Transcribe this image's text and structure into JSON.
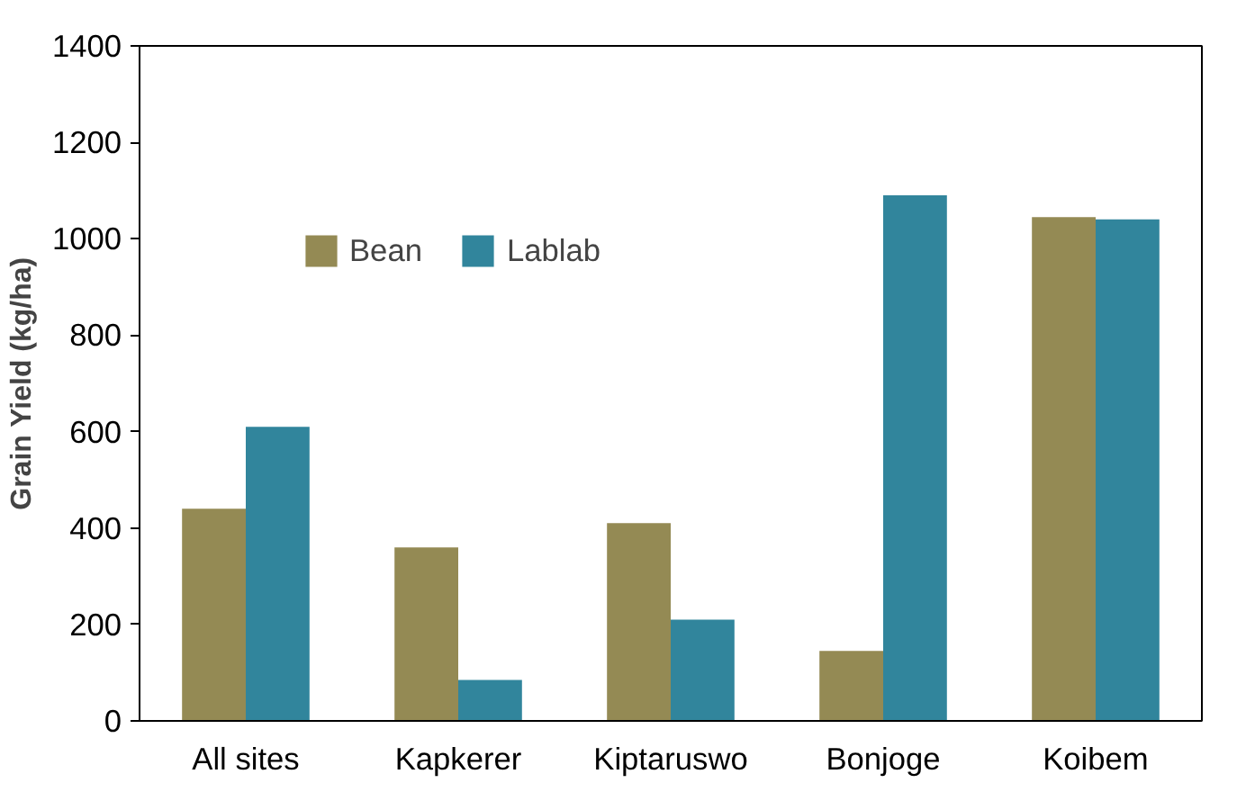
{
  "chart_data": {
    "type": "bar",
    "ylabel": "Grain Yield (kg/ha)",
    "categories": [
      "All sites",
      "Kapkerer",
      "Kiptaruswo",
      "Bonjoge",
      "Koibem"
    ],
    "series": [
      {
        "name": "Bean",
        "color": "#948a54",
        "values": [
          440,
          360,
          410,
          145,
          1045
        ]
      },
      {
        "name": "Lablab",
        "color": "#31859c",
        "values": [
          610,
          85,
          210,
          1090,
          1040
        ]
      }
    ],
    "ylim": [
      0,
      1400
    ],
    "yticks": [
      0,
      200,
      400,
      600,
      800,
      1000,
      1200,
      1400
    ],
    "grid": false,
    "legend": "top left"
  }
}
